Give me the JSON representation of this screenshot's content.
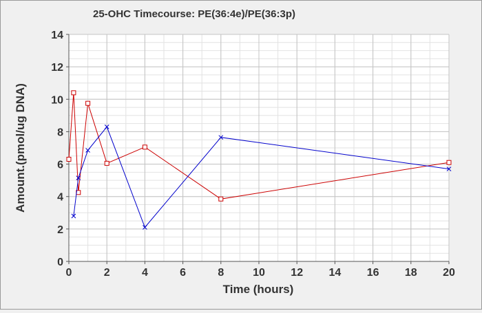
{
  "chart_data": {
    "type": "line",
    "title": "25-OHC Timecourse: PE(36:4e)/PE(36:3p)",
    "xlabel": "Time (hours)",
    "ylabel": "Amount.(pmol/ug DNA)",
    "xlim": [
      0,
      20
    ],
    "ylim": [
      0,
      14
    ],
    "x_ticks": [
      "0",
      "2",
      "4",
      "6",
      "8",
      "10",
      "12",
      "14",
      "16",
      "18",
      "20"
    ],
    "y_ticks": [
      "0",
      "2",
      "4",
      "6",
      "8",
      "10",
      "12",
      "14"
    ],
    "grid": true,
    "legend": "none",
    "series": [
      {
        "color": "#cc0000",
        "marker": "square",
        "x": [
          0,
          0.25,
          0.5,
          1,
          2,
          4,
          8,
          20
        ],
        "y": [
          6.3,
          10.4,
          4.25,
          9.75,
          6.05,
          7.05,
          3.85,
          6.1
        ]
      },
      {
        "color": "#0000cc",
        "marker": "x",
        "x": [
          0.25,
          0.5,
          1,
          2,
          4,
          8,
          20
        ],
        "y": [
          2.8,
          5.15,
          6.85,
          8.3,
          2.1,
          7.65,
          5.7
        ]
      }
    ]
  }
}
